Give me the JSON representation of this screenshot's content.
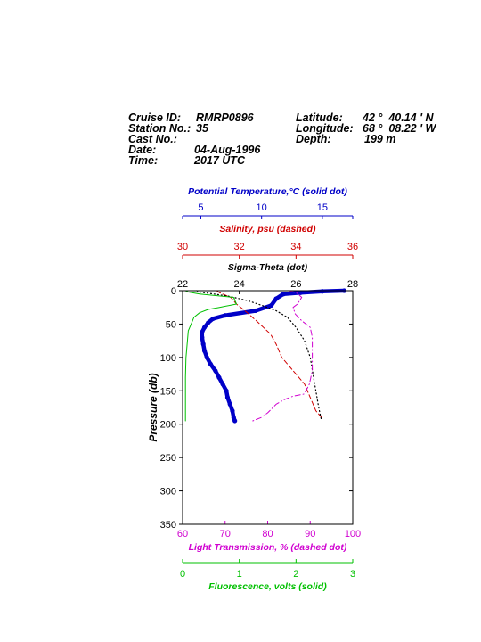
{
  "header": {
    "cruise_label": "Cruise ID:",
    "cruise_value": "RMRP0896",
    "station_label": "Station No.:",
    "station_value": "35",
    "cast_label": "Cast No.:",
    "cast_value": "",
    "date_label": "Date:",
    "date_value": "04-Aug-1996",
    "time_label": "Time:",
    "time_value": "2017 UTC",
    "lat_label": "Latitude:",
    "lat_value": "42 °  40.14 ' N",
    "lon_label": "Longitude:",
    "lon_value": "68 °  08.22 ' W",
    "depth_label": "Depth:",
    "depth_value": "199 m"
  },
  "colors": {
    "temperature": "#0000c8",
    "salinity": "#d00000",
    "sigma": "#000000",
    "transmission": "#d000d0",
    "fluorescence": "#00c000"
  },
  "chart_data": {
    "type": "line",
    "y_axis": {
      "label": "Pressure (db)",
      "range": [
        0,
        350
      ],
      "inverted": true,
      "ticks": [
        0,
        50,
        100,
        150,
        200,
        250,
        300,
        350
      ]
    },
    "axes": [
      {
        "key": "temperature",
        "label": "Potential Temperature,°C (solid dot)",
        "range": [
          3.5,
          17.5
        ],
        "ticks": [
          5,
          10,
          15
        ]
      },
      {
        "key": "salinity",
        "label": "Salinity, psu  (dashed)",
        "range": [
          30,
          36
        ],
        "ticks": [
          30,
          32,
          34,
          36
        ]
      },
      {
        "key": "sigma",
        "label": "Sigma-Theta (dot)",
        "range": [
          22,
          28
        ],
        "ticks": [
          22,
          24,
          26,
          28
        ]
      },
      {
        "key": "transmission",
        "label": "Light Transmission, % (dashed dot)",
        "range": [
          60,
          100
        ],
        "ticks": [
          60,
          70,
          80,
          90,
          100
        ]
      },
      {
        "key": "fluorescence",
        "label": "Fluorescence, volts (solid)",
        "range": [
          0,
          3
        ],
        "ticks": [
          0,
          1,
          2,
          3
        ]
      }
    ],
    "series": [
      {
        "key": "temperature",
        "style": "solid-dot",
        "points": [
          [
            16.8,
            0
          ],
          [
            15,
            1
          ],
          [
            13.2,
            3
          ],
          [
            11.8,
            5
          ],
          [
            11.2,
            12
          ],
          [
            10.8,
            22
          ],
          [
            9.5,
            30
          ],
          [
            7,
            37
          ],
          [
            6,
            42
          ],
          [
            5.6,
            48
          ],
          [
            5.3,
            55
          ],
          [
            5.1,
            62
          ],
          [
            5.1,
            70
          ],
          [
            5.2,
            80
          ],
          [
            5.3,
            90
          ],
          [
            5.5,
            100
          ],
          [
            5.8,
            110
          ],
          [
            6.2,
            120
          ],
          [
            6.5,
            130
          ],
          [
            6.8,
            140
          ],
          [
            7.1,
            150
          ],
          [
            7.2,
            160
          ],
          [
            7.4,
            170
          ],
          [
            7.6,
            180
          ],
          [
            7.7,
            190
          ],
          [
            7.8,
            195
          ]
        ]
      },
      {
        "key": "salinity",
        "style": "dashed",
        "points": [
          [
            31.2,
            0
          ],
          [
            31.3,
            3
          ],
          [
            31.7,
            10
          ],
          [
            31.9,
            20
          ],
          [
            32.2,
            30
          ],
          [
            32.6,
            45
          ],
          [
            33.1,
            65
          ],
          [
            33.3,
            80
          ],
          [
            33.5,
            100
          ],
          [
            33.9,
            120
          ],
          [
            34.3,
            140
          ],
          [
            34.5,
            160
          ],
          [
            34.7,
            180
          ],
          [
            34.9,
            190
          ]
        ]
      },
      {
        "key": "sigma",
        "style": "dotted",
        "points": [
          [
            22.5,
            0
          ],
          [
            22.6,
            2
          ],
          [
            23.6,
            8
          ],
          [
            24.3,
            15
          ],
          [
            24.8,
            22
          ],
          [
            25.3,
            30
          ],
          [
            25.7,
            40
          ],
          [
            26.0,
            55
          ],
          [
            26.3,
            75
          ],
          [
            26.5,
            100
          ],
          [
            26.6,
            125
          ],
          [
            26.7,
            150
          ],
          [
            26.8,
            175
          ],
          [
            26.9,
            195
          ]
        ]
      },
      {
        "key": "transmission",
        "style": "dash-dot",
        "points": [
          [
            85,
            0
          ],
          [
            87,
            4
          ],
          [
            88,
            10
          ],
          [
            87,
            20
          ],
          [
            86,
            25
          ],
          [
            86.5,
            35
          ],
          [
            88,
            45
          ],
          [
            90,
            55
          ],
          [
            90.5,
            70
          ],
          [
            90.5,
            100
          ],
          [
            90.5,
            120
          ],
          [
            89.8,
            140
          ],
          [
            89,
            150
          ],
          [
            88.5,
            155
          ],
          [
            86,
            158
          ],
          [
            84,
            163
          ],
          [
            82,
            170
          ],
          [
            80,
            183
          ],
          [
            78.5,
            190
          ],
          [
            76.5,
            195
          ]
        ]
      },
      {
        "key": "fluorescence",
        "style": "solid",
        "points": [
          [
            0.05,
            0
          ],
          [
            0.1,
            2
          ],
          [
            0.3,
            5
          ],
          [
            0.9,
            10
          ],
          [
            0.95,
            20
          ],
          [
            0.65,
            25
          ],
          [
            0.45,
            28
          ],
          [
            0.3,
            33
          ],
          [
            0.2,
            40
          ],
          [
            0.15,
            50
          ],
          [
            0.1,
            60
          ],
          [
            0.08,
            80
          ],
          [
            0.06,
            100
          ],
          [
            0.05,
            130
          ],
          [
            0.05,
            160
          ],
          [
            0.05,
            195
          ]
        ]
      }
    ]
  }
}
